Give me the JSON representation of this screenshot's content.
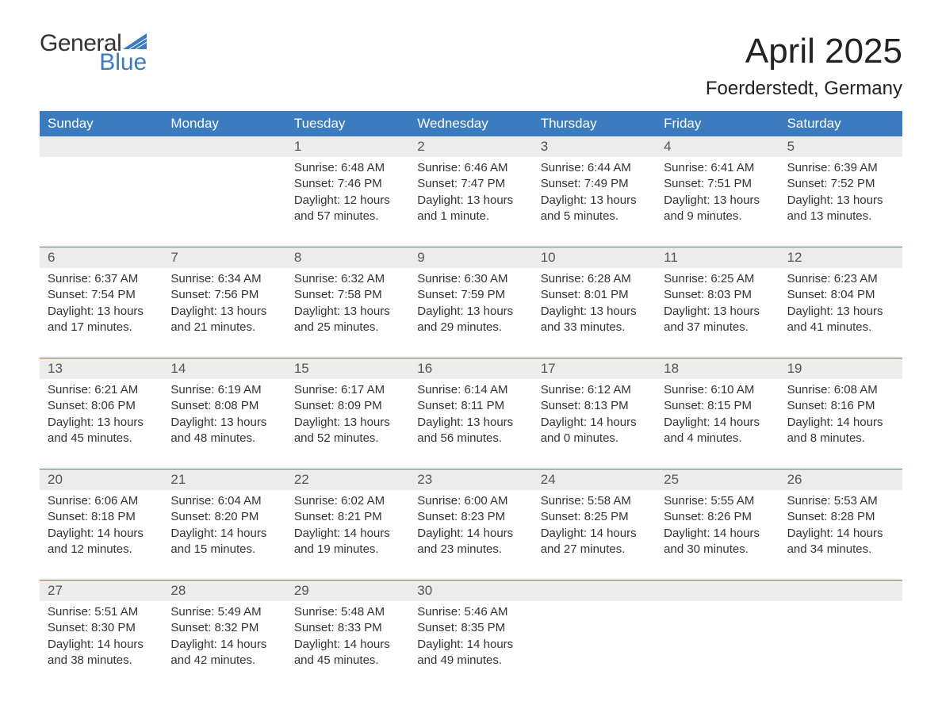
{
  "logo": {
    "word1": "General",
    "word2": "Blue",
    "triangle_color": "#3b7bbf",
    "word1_color": "#333333",
    "word2_color": "#3b7bbf"
  },
  "title": "April 2025",
  "location": "Foerderstedt, Germany",
  "colors": {
    "header_bg": "#3b7bbf",
    "header_text": "#ffffff",
    "date_row_bg": "#ececec",
    "date_text": "#555555",
    "body_text": "#333333",
    "week_divider": "#3b7bbf",
    "page_bg": "#ffffff"
  },
  "typography": {
    "title_fontsize": 44,
    "location_fontsize": 24,
    "header_fontsize": 17,
    "date_fontsize": 17,
    "cell_fontsize": 15,
    "font_family": "Arial"
  },
  "day_names": [
    "Sunday",
    "Monday",
    "Tuesday",
    "Wednesday",
    "Thursday",
    "Friday",
    "Saturday"
  ],
  "weeks": [
    {
      "dates": [
        "",
        "",
        "1",
        "2",
        "3",
        "4",
        "5"
      ],
      "cells": [
        {},
        {},
        {
          "sunrise": "Sunrise: 6:48 AM",
          "sunset": "Sunset: 7:46 PM",
          "daylight": "Daylight: 12 hours and 57 minutes."
        },
        {
          "sunrise": "Sunrise: 6:46 AM",
          "sunset": "Sunset: 7:47 PM",
          "daylight": "Daylight: 13 hours and 1 minute."
        },
        {
          "sunrise": "Sunrise: 6:44 AM",
          "sunset": "Sunset: 7:49 PM",
          "daylight": "Daylight: 13 hours and 5 minutes."
        },
        {
          "sunrise": "Sunrise: 6:41 AM",
          "sunset": "Sunset: 7:51 PM",
          "daylight": "Daylight: 13 hours and 9 minutes."
        },
        {
          "sunrise": "Sunrise: 6:39 AM",
          "sunset": "Sunset: 7:52 PM",
          "daylight": "Daylight: 13 hours and 13 minutes."
        }
      ]
    },
    {
      "dates": [
        "6",
        "7",
        "8",
        "9",
        "10",
        "11",
        "12"
      ],
      "cells": [
        {
          "sunrise": "Sunrise: 6:37 AM",
          "sunset": "Sunset: 7:54 PM",
          "daylight": "Daylight: 13 hours and 17 minutes."
        },
        {
          "sunrise": "Sunrise: 6:34 AM",
          "sunset": "Sunset: 7:56 PM",
          "daylight": "Daylight: 13 hours and 21 minutes."
        },
        {
          "sunrise": "Sunrise: 6:32 AM",
          "sunset": "Sunset: 7:58 PM",
          "daylight": "Daylight: 13 hours and 25 minutes."
        },
        {
          "sunrise": "Sunrise: 6:30 AM",
          "sunset": "Sunset: 7:59 PM",
          "daylight": "Daylight: 13 hours and 29 minutes."
        },
        {
          "sunrise": "Sunrise: 6:28 AM",
          "sunset": "Sunset: 8:01 PM",
          "daylight": "Daylight: 13 hours and 33 minutes."
        },
        {
          "sunrise": "Sunrise: 6:25 AM",
          "sunset": "Sunset: 8:03 PM",
          "daylight": "Daylight: 13 hours and 37 minutes."
        },
        {
          "sunrise": "Sunrise: 6:23 AM",
          "sunset": "Sunset: 8:04 PM",
          "daylight": "Daylight: 13 hours and 41 minutes."
        }
      ]
    },
    {
      "dates": [
        "13",
        "14",
        "15",
        "16",
        "17",
        "18",
        "19"
      ],
      "cells": [
        {
          "sunrise": "Sunrise: 6:21 AM",
          "sunset": "Sunset: 8:06 PM",
          "daylight": "Daylight: 13 hours and 45 minutes."
        },
        {
          "sunrise": "Sunrise: 6:19 AM",
          "sunset": "Sunset: 8:08 PM",
          "daylight": "Daylight: 13 hours and 48 minutes."
        },
        {
          "sunrise": "Sunrise: 6:17 AM",
          "sunset": "Sunset: 8:09 PM",
          "daylight": "Daylight: 13 hours and 52 minutes."
        },
        {
          "sunrise": "Sunrise: 6:14 AM",
          "sunset": "Sunset: 8:11 PM",
          "daylight": "Daylight: 13 hours and 56 minutes."
        },
        {
          "sunrise": "Sunrise: 6:12 AM",
          "sunset": "Sunset: 8:13 PM",
          "daylight": "Daylight: 14 hours and 0 minutes."
        },
        {
          "sunrise": "Sunrise: 6:10 AM",
          "sunset": "Sunset: 8:15 PM",
          "daylight": "Daylight: 14 hours and 4 minutes."
        },
        {
          "sunrise": "Sunrise: 6:08 AM",
          "sunset": "Sunset: 8:16 PM",
          "daylight": "Daylight: 14 hours and 8 minutes."
        }
      ]
    },
    {
      "dates": [
        "20",
        "21",
        "22",
        "23",
        "24",
        "25",
        "26"
      ],
      "cells": [
        {
          "sunrise": "Sunrise: 6:06 AM",
          "sunset": "Sunset: 8:18 PM",
          "daylight": "Daylight: 14 hours and 12 minutes."
        },
        {
          "sunrise": "Sunrise: 6:04 AM",
          "sunset": "Sunset: 8:20 PM",
          "daylight": "Daylight: 14 hours and 15 minutes."
        },
        {
          "sunrise": "Sunrise: 6:02 AM",
          "sunset": "Sunset: 8:21 PM",
          "daylight": "Daylight: 14 hours and 19 minutes."
        },
        {
          "sunrise": "Sunrise: 6:00 AM",
          "sunset": "Sunset: 8:23 PM",
          "daylight": "Daylight: 14 hours and 23 minutes."
        },
        {
          "sunrise": "Sunrise: 5:58 AM",
          "sunset": "Sunset: 8:25 PM",
          "daylight": "Daylight: 14 hours and 27 minutes."
        },
        {
          "sunrise": "Sunrise: 5:55 AM",
          "sunset": "Sunset: 8:26 PM",
          "daylight": "Daylight: 14 hours and 30 minutes."
        },
        {
          "sunrise": "Sunrise: 5:53 AM",
          "sunset": "Sunset: 8:28 PM",
          "daylight": "Daylight: 14 hours and 34 minutes."
        }
      ]
    },
    {
      "dates": [
        "27",
        "28",
        "29",
        "30",
        "",
        "",
        ""
      ],
      "cells": [
        {
          "sunrise": "Sunrise: 5:51 AM",
          "sunset": "Sunset: 8:30 PM",
          "daylight": "Daylight: 14 hours and 38 minutes."
        },
        {
          "sunrise": "Sunrise: 5:49 AM",
          "sunset": "Sunset: 8:32 PM",
          "daylight": "Daylight: 14 hours and 42 minutes."
        },
        {
          "sunrise": "Sunrise: 5:48 AM",
          "sunset": "Sunset: 8:33 PM",
          "daylight": "Daylight: 14 hours and 45 minutes."
        },
        {
          "sunrise": "Sunrise: 5:46 AM",
          "sunset": "Sunset: 8:35 PM",
          "daylight": "Daylight: 14 hours and 49 minutes."
        },
        {},
        {},
        {}
      ]
    }
  ]
}
